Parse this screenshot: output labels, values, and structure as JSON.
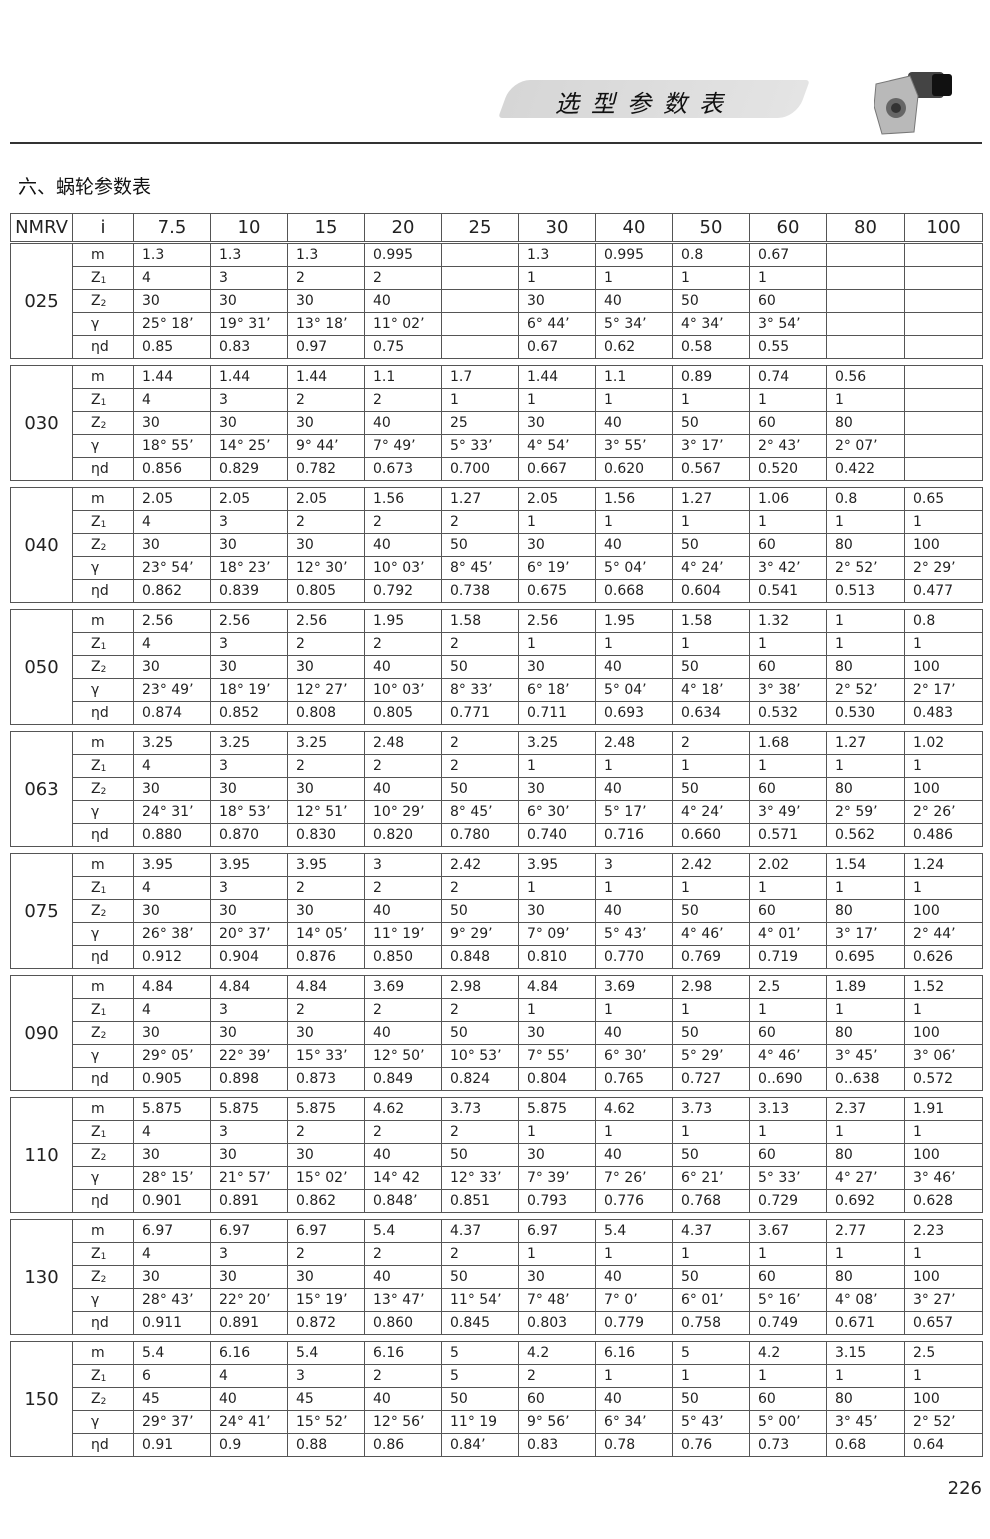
{
  "header": {
    "banner_title": "选型参数表",
    "section_title": "六、蜗轮参数表",
    "page_number": "226"
  },
  "table": {
    "columns": [
      "NMRV",
      "i",
      "7.5",
      "10",
      "15",
      "20",
      "25",
      "30",
      "40",
      "50",
      "60",
      "80",
      "100"
    ],
    "row_labels": [
      {
        "main": "m",
        "sub": ""
      },
      {
        "main": "Z",
        "sub": "1"
      },
      {
        "main": "Z",
        "sub": "2"
      },
      {
        "main": "γ",
        "sub": ""
      },
      {
        "main": "ηd",
        "sub": ""
      }
    ],
    "groups": [
      {
        "model": "025",
        "rows": [
          [
            "1.3",
            "1.3",
            "1.3",
            "0.995",
            "",
            "1.3",
            "0.995",
            "0.8",
            "0.67",
            "",
            ""
          ],
          [
            "4",
            "3",
            "2",
            "2",
            "",
            "1",
            "1",
            "1",
            "1",
            "",
            ""
          ],
          [
            "30",
            "30",
            "30",
            "40",
            "",
            "30",
            "40",
            "50",
            "60",
            "",
            ""
          ],
          [
            "25° 18’",
            "19° 31’",
            "13° 18’",
            "11° 02’",
            "",
            "6° 44’",
            "5° 34’",
            "4° 34’",
            "3° 54’",
            "",
            ""
          ],
          [
            "0.85",
            "0.83",
            "0.97",
            "0.75",
            "",
            "0.67",
            "0.62",
            "0.58",
            "0.55",
            "",
            ""
          ]
        ]
      },
      {
        "model": "030",
        "rows": [
          [
            "1.44",
            "1.44",
            "1.44",
            "1.1",
            "1.7",
            "1.44",
            "1.1",
            "0.89",
            "0.74",
            "0.56",
            ""
          ],
          [
            "4",
            "3",
            "2",
            "2",
            "1",
            "1",
            "1",
            "1",
            "1",
            "1",
            ""
          ],
          [
            "30",
            "30",
            "30",
            "40",
            "25",
            "30",
            "40",
            "50",
            "60",
            "80",
            ""
          ],
          [
            "18° 55’",
            "14° 25’",
            "9° 44’",
            "7° 49’",
            "5° 33’",
            "4° 54’",
            "3° 55’",
            "3° 17’",
            "2° 43’",
            "2° 07’",
            ""
          ],
          [
            "0.856",
            "0.829",
            "0.782",
            "0.673",
            "0.700",
            "0.667",
            "0.620",
            "0.567",
            "0.520",
            "0.422",
            ""
          ]
        ]
      },
      {
        "model": "040",
        "rows": [
          [
            "2.05",
            "2.05",
            "2.05",
            "1.56",
            "1.27",
            "2.05",
            "1.56",
            "1.27",
            "1.06",
            "0.8",
            "0.65"
          ],
          [
            "4",
            "3",
            "2",
            "2",
            "2",
            "1",
            "1",
            "1",
            "1",
            "1",
            "1"
          ],
          [
            "30",
            "30",
            "30",
            "40",
            "50",
            "30",
            "40",
            "50",
            "60",
            "80",
            "100"
          ],
          [
            "23° 54’",
            "18° 23’",
            "12° 30’",
            "10° 03’",
            "8° 45’",
            "6° 19’",
            "5° 04’",
            "4° 24’",
            "3° 42’",
            "2° 52’",
            "2° 29’"
          ],
          [
            "0.862",
            "0.839",
            "0.805",
            "0.792",
            "0.738",
            "0.675",
            "0.668",
            "0.604",
            "0.541",
            "0.513",
            "0.477"
          ]
        ]
      },
      {
        "model": "050",
        "rows": [
          [
            "2.56",
            "2.56",
            "2.56",
            "1.95",
            "1.58",
            "2.56",
            "1.95",
            "1.58",
            "1.32",
            "1",
            "0.8"
          ],
          [
            "4",
            "3",
            "2",
            "2",
            "2",
            "1",
            "1",
            "1",
            "1",
            "1",
            "1"
          ],
          [
            "30",
            "30",
            "30",
            "40",
            "50",
            "30",
            "40",
            "50",
            "60",
            "80",
            "100"
          ],
          [
            "23° 49’",
            "18° 19’",
            "12° 27’",
            "10° 03’",
            "8° 33’",
            "6° 18’",
            "5° 04’",
            "4° 18’",
            "3° 38’",
            "2° 52’",
            "2° 17’"
          ],
          [
            "0.874",
            "0.852",
            "0.808",
            "0.805",
            "0.771",
            "0.711",
            "0.693",
            "0.634",
            "0.532",
            "0.530",
            "0.483"
          ]
        ]
      },
      {
        "model": "063",
        "rows": [
          [
            "3.25",
            "3.25",
            "3.25",
            "2.48",
            "2",
            "3.25",
            "2.48",
            "2",
            "1.68",
            "1.27",
            "1.02"
          ],
          [
            "4",
            "3",
            "2",
            "2",
            "2",
            "1",
            "1",
            "1",
            "1",
            "1",
            "1"
          ],
          [
            "30",
            "30",
            "30",
            "40",
            "50",
            "30",
            "40",
            "50",
            "60",
            "80",
            "100"
          ],
          [
            "24° 31’",
            "18° 53’",
            "12° 51’",
            "10° 29’",
            "8° 45’",
            "6° 30’",
            "5° 17’",
            "4° 24’",
            "3° 49’",
            "2° 59’",
            "2° 26’"
          ],
          [
            "0.880",
            "0.870",
            "0.830",
            "0.820",
            "0.780",
            "0.740",
            "0.716",
            "0.660",
            "0.571",
            "0.562",
            "0.486"
          ]
        ]
      },
      {
        "model": "075",
        "rows": [
          [
            "3.95",
            "3.95",
            "3.95",
            "3",
            "2.42",
            "3.95",
            "3",
            "2.42",
            "2.02",
            "1.54",
            "1.24"
          ],
          [
            "4",
            "3",
            "2",
            "2",
            "2",
            "1",
            "1",
            "1",
            "1",
            "1",
            "1"
          ],
          [
            "30",
            "30",
            "30",
            "40",
            "50",
            "30",
            "40",
            "50",
            "60",
            "80",
            "100"
          ],
          [
            "26° 38’",
            "20° 37’",
            "14° 05’",
            "11° 19’",
            "9° 29’",
            "7° 09’",
            "5° 43’",
            "4° 46’",
            "4° 01’",
            "3° 17’",
            "2° 44’"
          ],
          [
            "0.912",
            "0.904",
            "0.876",
            "0.850",
            "0.848",
            "0.810",
            "0.770",
            "0.769",
            "0.719",
            "0.695",
            "0.626"
          ]
        ]
      },
      {
        "model": "090",
        "rows": [
          [
            "4.84",
            "4.84",
            "4.84",
            "3.69",
            "2.98",
            "4.84",
            "3.69",
            "2.98",
            "2.5",
            "1.89",
            "1.52"
          ],
          [
            "4",
            "3",
            "2",
            "2",
            "2",
            "1",
            "1",
            "1",
            "1",
            "1",
            "1"
          ],
          [
            "30",
            "30",
            "30",
            "40",
            "50",
            "30",
            "40",
            "50",
            "60",
            "80",
            "100"
          ],
          [
            "29° 05’",
            "22° 39’",
            "15° 33’",
            "12° 50’",
            "10° 53’",
            "7° 55’",
            "6° 30’",
            "5° 29’",
            "4° 46’",
            "3° 45’",
            "3° 06’"
          ],
          [
            "0.905",
            "0.898",
            "0.873",
            "0.849",
            "0.824",
            "0.804",
            "0.765",
            "0.727",
            "0..690",
            "0..638",
            "0.572"
          ]
        ]
      },
      {
        "model": "110",
        "rows": [
          [
            "5.875",
            "5.875",
            "5.875",
            "4.62",
            "3.73",
            "5.875",
            "4.62",
            "3.73",
            "3.13",
            "2.37",
            "1.91"
          ],
          [
            "4",
            "3",
            "2",
            "2",
            "2",
            "1",
            "1",
            "1",
            "1",
            "1",
            "1"
          ],
          [
            "30",
            "30",
            "30",
            "40",
            "50",
            "30",
            "40",
            "50",
            "60",
            "80",
            "100"
          ],
          [
            "28° 15’",
            "21° 57’",
            "15° 02’",
            "14° 42",
            "12° 33’",
            "7° 39’",
            "7° 26’",
            "6° 21’",
            "5° 33’",
            "4° 27’",
            "3° 46’"
          ],
          [
            "0.901",
            "0.891",
            "0.862",
            "0.848’",
            "0.851",
            "0.793",
            "0.776",
            "0.768",
            "0.729",
            "0.692",
            "0.628"
          ]
        ]
      },
      {
        "model": "130",
        "rows": [
          [
            "6.97",
            "6.97",
            "6.97",
            "5.4",
            "4.37",
            "6.97",
            "5.4",
            "4.37",
            "3.67",
            "2.77",
            "2.23"
          ],
          [
            "4",
            "3",
            "2",
            "2",
            "2",
            "1",
            "1",
            "1",
            "1",
            "1",
            "1"
          ],
          [
            "30",
            "30",
            "30",
            "40",
            "50",
            "30",
            "40",
            "50",
            "60",
            "80",
            "100"
          ],
          [
            "28° 43’",
            "22° 20’",
            "15° 19’",
            "13° 47’",
            "11° 54’",
            "7° 48’",
            "7° 0’",
            "6° 01’",
            "5° 16’",
            "4° 08’",
            "3° 27’"
          ],
          [
            "0.911",
            "0.891",
            "0.872",
            "0.860",
            "0.845",
            "0.803",
            "0.779",
            "0.758",
            "0.749",
            "0.671",
            "0.657"
          ]
        ]
      },
      {
        "model": "150",
        "rows": [
          [
            "5.4",
            "6.16",
            "5.4",
            "6.16",
            "5",
            "4.2",
            "6.16",
            "5",
            "4.2",
            "3.15",
            "2.5"
          ],
          [
            "6",
            "4",
            "3",
            "2",
            "5",
            "2",
            "1",
            "1",
            "1",
            "1",
            "1"
          ],
          [
            "45",
            "40",
            "45",
            "40",
            "50",
            "60",
            "40",
            "50",
            "60",
            "80",
            "100"
          ],
          [
            "29° 37’",
            "24° 41’",
            "15° 52’",
            "12° 56’",
            "11° 19",
            "9° 56’",
            "6° 34’",
            "5° 43’",
            "5° 00’",
            "3° 45’",
            "2° 52’"
          ],
          [
            "0.91",
            "0.9",
            "0.88",
            "0.86",
            "0.84’",
            "0.83",
            "0.78",
            "0.76",
            "0.73",
            "0.68",
            "0.64"
          ]
        ]
      }
    ]
  }
}
